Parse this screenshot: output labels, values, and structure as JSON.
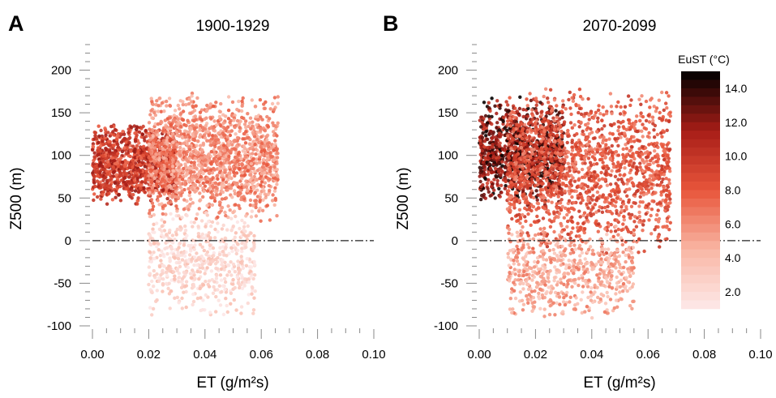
{
  "chart_data": [
    {
      "type": "scatter",
      "panel_label": "A",
      "title": "1900-1929",
      "xlabel": "ET (g/m²s)",
      "ylabel": "Z500 (m)",
      "xlim": [
        0,
        0.1
      ],
      "ylim": [
        -100,
        230
      ],
      "xticks": [
        "0.00",
        "0.02",
        "0.04",
        "0.06",
        "0.08",
        "0.10"
      ],
      "yticks": [
        "-100",
        "-50",
        "0",
        "50",
        "100",
        "150",
        "200"
      ],
      "reference_line": {
        "y": 0,
        "style": "dash-dot"
      },
      "point_cloud": {
        "color_variable": "EuST (°C)",
        "clusters": [
          {
            "x": [
              0.0,
              0.03
            ],
            "y": [
              40,
              140
            ],
            "eust": [
              7,
              12
            ]
          },
          {
            "x": [
              0.02,
              0.066
            ],
            "y": [
              20,
              175
            ],
            "eust": [
              4,
              8
            ]
          },
          {
            "x": [
              0.02,
              0.058
            ],
            "y": [
              -90,
              40
            ],
            "eust": [
              1,
              4
            ]
          }
        ]
      }
    },
    {
      "type": "scatter",
      "panel_label": "B",
      "title": "2070-2099",
      "xlabel": "ET (g/m²s)",
      "ylabel": "Z500 (m)",
      "xlim": [
        0,
        0.1
      ],
      "ylim": [
        -100,
        230
      ],
      "xticks": [
        "0.00",
        "0.02",
        "0.04",
        "0.06",
        "0.08",
        "0.10"
      ],
      "yticks": [
        "-100",
        "-50",
        "0",
        "50",
        "100",
        "150",
        "200"
      ],
      "reference_line": {
        "y": 0,
        "style": "dash-dot"
      },
      "point_cloud": {
        "color_variable": "EuST (°C)",
        "clusters": [
          {
            "x": [
              0.0,
              0.03
            ],
            "y": [
              40,
              170
            ],
            "eust": [
              9,
              15
            ]
          },
          {
            "x": [
              0.01,
              0.068
            ],
            "y": [
              -20,
              185
            ],
            "eust": [
              6,
              10
            ]
          },
          {
            "x": [
              0.01,
              0.055
            ],
            "y": [
              -95,
              20
            ],
            "eust": [
              3,
              7
            ]
          }
        ]
      }
    }
  ],
  "colorbar": {
    "title": "EuST (°C)",
    "range": [
      1,
      15
    ],
    "labels": [
      "14.0",
      "12.0",
      "10.0",
      "8.0",
      "6.0",
      "4.0",
      "2.0"
    ],
    "label_values": [
      14,
      12,
      10,
      8,
      6,
      4,
      2
    ],
    "colors": {
      "low": "#fde9e9",
      "mid_low": "#f9b6a4",
      "mid": "#e8553a",
      "mid_high": "#a71d17",
      "high": "#000000"
    }
  }
}
